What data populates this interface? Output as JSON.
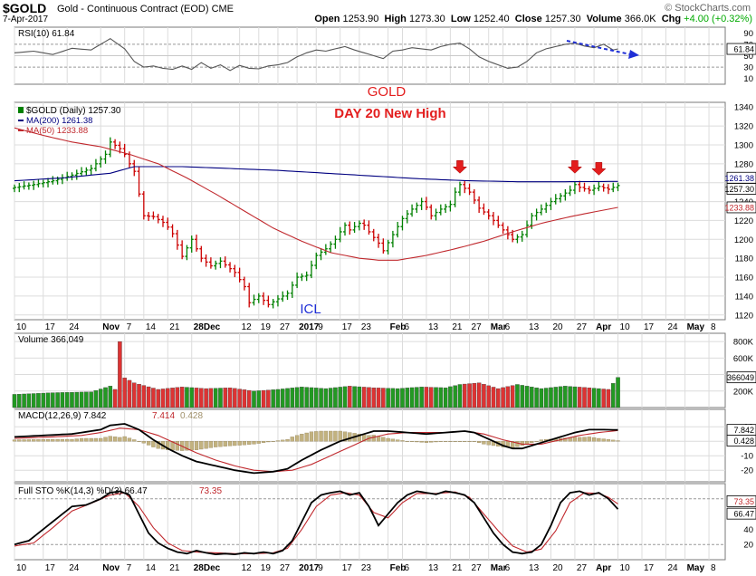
{
  "header": {
    "symbol": "$GOLD",
    "name": "Gold - Continuous Contract (EOD)  CME",
    "brand": "© StockCharts.com",
    "date": "7-Apr-2017",
    "open_label": "Open",
    "open": "1253.90",
    "high_label": "High",
    "high": "1273.30",
    "low_label": "Low",
    "low": "1252.40",
    "close_label": "Close",
    "close": "1257.30",
    "volume_label": "Volume",
    "volume": "366.0K",
    "chg_label": "Chg",
    "chg": "+4.00 (+0.32%)",
    "chg_color": "#00aa00"
  },
  "x_axis": {
    "labels": [
      {
        "i": 0,
        "t": "10"
      },
      {
        "i": 6,
        "t": "17"
      },
      {
        "i": 11,
        "t": "24"
      },
      {
        "i": 18,
        "t": "Nov"
      },
      {
        "i": 23,
        "t": "7"
      },
      {
        "i": 27,
        "t": "14"
      },
      {
        "i": 32,
        "t": "21"
      },
      {
        "i": 37,
        "t": "28Dec"
      },
      {
        "i": 47,
        "t": "12"
      },
      {
        "i": 51,
        "t": "19"
      },
      {
        "i": 55,
        "t": "27"
      },
      {
        "i": 59,
        "t": "2017"
      },
      {
        "i": 63,
        "t": "9"
      },
      {
        "i": 68,
        "t": "17"
      },
      {
        "i": 72,
        "t": "23"
      },
      {
        "i": 78,
        "t": "Feb"
      },
      {
        "i": 81,
        "t": "6"
      },
      {
        "i": 86,
        "t": "13"
      },
      {
        "i": 91,
        "t": "21"
      },
      {
        "i": 95,
        "t": "27"
      },
      {
        "i": 99,
        "t": "Mar"
      },
      {
        "i": 102,
        "t": "6"
      },
      {
        "i": 107,
        "t": "13"
      },
      {
        "i": 112,
        "t": "20"
      },
      {
        "i": 117,
        "t": "27"
      },
      {
        "i": 121,
        "t": "Apr"
      },
      {
        "i": 126,
        "t": "10"
      },
      {
        "i": 131,
        "t": "17"
      },
      {
        "i": 136,
        "t": "24"
      },
      {
        "i": 140,
        "t": "May"
      },
      {
        "i": 145,
        "t": "8"
      }
    ]
  },
  "rsi_panel": {
    "legend": "RSI(10) 61.84",
    "ticks": [
      "90",
      "70",
      "50",
      "30",
      "10"
    ],
    "tick_values": [
      90,
      70,
      50,
      30,
      10
    ],
    "last_label": "61.84"
  },
  "price_panel": {
    "legend_title": "$GOLD (Daily) 1257.30",
    "legend_ma200": "MA(200) 1261.38",
    "legend_ma50": "MA(50) 1233.88",
    "ma200_color": "#000080",
    "ma50_color": "#c0282d",
    "ticks": [
      "1340",
      "1320",
      "1300",
      "1280",
      "1260",
      "1240",
      "1220",
      "1200",
      "1180",
      "1160",
      "1140",
      "1120"
    ],
    "tick_values": [
      1340,
      1320,
      1300,
      1280,
      1260,
      1240,
      1220,
      1200,
      1180,
      1160,
      1140,
      1120
    ],
    "last_label": "1257.30",
    "ma200_label": "1261.38",
    "ma50_label": "1233.88",
    "up_color": "#008000",
    "down_color": "#cc0000"
  },
  "annotations": {
    "gold": "GOLD",
    "day20": "DAY 20  New High",
    "icl": "ICL",
    "red_color": "#e31d1d",
    "blue_color": "#1f2fd6"
  },
  "volume_panel": {
    "legend": "Volume 366,049",
    "ticks": [
      "800K",
      "600K",
      "400K",
      "200K"
    ],
    "tick_values": [
      800000,
      600000,
      400000,
      200000
    ],
    "last_label": "366049"
  },
  "macd_panel": {
    "legend_a": "MACD(12,26,9) 7.842",
    "legend_b": "7.414",
    "legend_c": "0.428",
    "ticks": [
      "10",
      "0",
      "-10",
      "-20"
    ],
    "tick_values": [
      10,
      0,
      -10,
      -20
    ],
    "macd_label": "7.842",
    "hist_label": "0.428"
  },
  "sto_panel": {
    "legend_a": "Full STO %K(14,3) %D(3) 66.47",
    "legend_b": "73.35",
    "ticks": [
      "80",
      "60",
      "40",
      "20"
    ],
    "tick_values": [
      80,
      60,
      40,
      20
    ],
    "k_label": "66.47",
    "d_label": "73.35"
  },
  "chart_data": {
    "type": "line",
    "title": "$GOLD (Daily) 1257.30",
    "ylim": [
      1115,
      1345
    ],
    "arrows_at": [
      93,
      117,
      122,
      128
    ],
    "close_anchors": [
      [
        0,
        1255
      ],
      [
        4,
        1258
      ],
      [
        8,
        1262
      ],
      [
        12,
        1268
      ],
      [
        16,
        1275
      ],
      [
        19,
        1290
      ],
      [
        20,
        1303
      ],
      [
        22,
        1296
      ],
      [
        23,
        1290
      ],
      [
        24,
        1280
      ],
      [
        25,
        1272
      ],
      [
        26,
        1248
      ],
      [
        27,
        1225
      ],
      [
        29,
        1224
      ],
      [
        31,
        1218
      ],
      [
        32,
        1213
      ],
      [
        33,
        1206
      ],
      [
        35,
        1182
      ],
      [
        37,
        1200
      ],
      [
        39,
        1180
      ],
      [
        41,
        1172
      ],
      [
        43,
        1177
      ],
      [
        46,
        1165
      ],
      [
        48,
        1150
      ],
      [
        49,
        1133
      ],
      [
        51,
        1140
      ],
      [
        53,
        1131
      ],
      [
        55,
        1137
      ],
      [
        57,
        1143
      ],
      [
        59,
        1160
      ],
      [
        61,
        1162
      ],
      [
        63,
        1183
      ],
      [
        65,
        1190
      ],
      [
        67,
        1200
      ],
      [
        68,
        1208
      ],
      [
        69,
        1215
      ],
      [
        70,
        1210
      ],
      [
        72,
        1217
      ],
      [
        73,
        1215
      ],
      [
        74,
        1208
      ],
      [
        76,
        1196
      ],
      [
        77,
        1188
      ],
      [
        79,
        1205
      ],
      [
        81,
        1222
      ],
      [
        83,
        1232
      ],
      [
        85,
        1240
      ],
      [
        86,
        1234
      ],
      [
        87,
        1225
      ],
      [
        89,
        1232
      ],
      [
        91,
        1237
      ],
      [
        92,
        1250
      ],
      [
        93,
        1258
      ],
      [
        95,
        1250
      ],
      [
        97,
        1233
      ],
      [
        99,
        1225
      ],
      [
        101,
        1215
      ],
      [
        103,
        1205
      ],
      [
        104,
        1200
      ],
      [
        106,
        1205
      ],
      [
        108,
        1225
      ],
      [
        110,
        1232
      ],
      [
        112,
        1240
      ],
      [
        114,
        1246
      ],
      [
        116,
        1252
      ],
      [
        117,
        1258
      ],
      [
        118,
        1255
      ],
      [
        120,
        1252
      ],
      [
        122,
        1256
      ],
      [
        124,
        1253
      ],
      [
        126,
        1257
      ]
    ],
    "rsi_anchors": [
      [
        0,
        55
      ],
      [
        4,
        58
      ],
      [
        8,
        52
      ],
      [
        12,
        63
      ],
      [
        16,
        60
      ],
      [
        18,
        70
      ],
      [
        20,
        80
      ],
      [
        21,
        74
      ],
      [
        23,
        62
      ],
      [
        25,
        40
      ],
      [
        27,
        30
      ],
      [
        29,
        32
      ],
      [
        31,
        28
      ],
      [
        33,
        26
      ],
      [
        35,
        32
      ],
      [
        37,
        26
      ],
      [
        39,
        38
      ],
      [
        41,
        28
      ],
      [
        43,
        34
      ],
      [
        45,
        24
      ],
      [
        47,
        33
      ],
      [
        49,
        28
      ],
      [
        51,
        27
      ],
      [
        53,
        32
      ],
      [
        55,
        34
      ],
      [
        57,
        38
      ],
      [
        59,
        48
      ],
      [
        61,
        55
      ],
      [
        63,
        60
      ],
      [
        65,
        58
      ],
      [
        67,
        62
      ],
      [
        69,
        66
      ],
      [
        71,
        60
      ],
      [
        73,
        55
      ],
      [
        75,
        50
      ],
      [
        77,
        45
      ],
      [
        79,
        58
      ],
      [
        81,
        60
      ],
      [
        83,
        64
      ],
      [
        85,
        62
      ],
      [
        87,
        60
      ],
      [
        89,
        66
      ],
      [
        91,
        70
      ],
      [
        93,
        72
      ],
      [
        95,
        62
      ],
      [
        97,
        48
      ],
      [
        99,
        40
      ],
      [
        101,
        34
      ],
      [
        103,
        28
      ],
      [
        105,
        30
      ],
      [
        107,
        40
      ],
      [
        109,
        55
      ],
      [
        111,
        62
      ],
      [
        113,
        66
      ],
      [
        115,
        70
      ],
      [
        117,
        72
      ],
      [
        119,
        67
      ],
      [
        121,
        64
      ],
      [
        123,
        70
      ],
      [
        125,
        60
      ],
      [
        126,
        61.84
      ]
    ],
    "ma200_anchors": [
      [
        0,
        1262
      ],
      [
        10,
        1265
      ],
      [
        20,
        1270
      ],
      [
        25,
        1277
      ],
      [
        35,
        1277
      ],
      [
        45,
        1275
      ],
      [
        55,
        1273
      ],
      [
        65,
        1270
      ],
      [
        75,
        1267
      ],
      [
        85,
        1264
      ],
      [
        95,
        1262
      ],
      [
        105,
        1261
      ],
      [
        115,
        1261
      ],
      [
        126,
        1261.38
      ]
    ],
    "ma50_anchors": [
      [
        0,
        1318
      ],
      [
        6,
        1310
      ],
      [
        12,
        1303
      ],
      [
        18,
        1298
      ],
      [
        24,
        1290
      ],
      [
        30,
        1280
      ],
      [
        36,
        1265
      ],
      [
        42,
        1248
      ],
      [
        48,
        1230
      ],
      [
        54,
        1212
      ],
      [
        60,
        1198
      ],
      [
        66,
        1186
      ],
      [
        72,
        1180
      ],
      [
        76,
        1178
      ],
      [
        80,
        1178
      ],
      [
        86,
        1183
      ],
      [
        92,
        1190
      ],
      [
        98,
        1198
      ],
      [
        104,
        1208
      ],
      [
        110,
        1217
      ],
      [
        116,
        1224
      ],
      [
        121,
        1229
      ],
      [
        126,
        1233.88
      ]
    ],
    "volume_anchors": [
      [
        0,
        160000
      ],
      [
        8,
        180000
      ],
      [
        16,
        190000
      ],
      [
        20,
        260000
      ],
      [
        21,
        220000
      ],
      [
        22,
        800000
      ],
      [
        23,
        360000
      ],
      [
        25,
        300000
      ],
      [
        30,
        220000
      ],
      [
        35,
        250000
      ],
      [
        40,
        230000
      ],
      [
        45,
        240000
      ],
      [
        50,
        200000
      ],
      [
        55,
        220000
      ],
      [
        60,
        250000
      ],
      [
        65,
        230000
      ],
      [
        70,
        260000
      ],
      [
        75,
        240000
      ],
      [
        80,
        230000
      ],
      [
        85,
        250000
      ],
      [
        90,
        240000
      ],
      [
        93,
        280000
      ],
      [
        97,
        300000
      ],
      [
        101,
        230000
      ],
      [
        105,
        280000
      ],
      [
        110,
        230000
      ],
      [
        115,
        260000
      ],
      [
        120,
        240000
      ],
      [
        124,
        220000
      ],
      [
        126,
        366049
      ]
    ],
    "macd_anchors": [
      [
        0,
        3
      ],
      [
        6,
        4
      ],
      [
        12,
        5
      ],
      [
        18,
        8
      ],
      [
        20,
        11
      ],
      [
        23,
        12
      ],
      [
        26,
        8
      ],
      [
        29,
        1
      ],
      [
        32,
        -5
      ],
      [
        35,
        -10
      ],
      [
        38,
        -14
      ],
      [
        42,
        -17
      ],
      [
        46,
        -20
      ],
      [
        50,
        -22
      ],
      [
        54,
        -21
      ],
      [
        57,
        -19
      ],
      [
        60,
        -13
      ],
      [
        64,
        -6
      ],
      [
        68,
        0
      ],
      [
        72,
        4
      ],
      [
        75,
        7
      ],
      [
        78,
        7
      ],
      [
        82,
        6
      ],
      [
        86,
        5
      ],
      [
        90,
        6
      ],
      [
        94,
        7
      ],
      [
        96,
        6
      ],
      [
        98,
        3
      ],
      [
        100,
        0
      ],
      [
        102,
        -3
      ],
      [
        104,
        -5
      ],
      [
        106,
        -5
      ],
      [
        108,
        -3
      ],
      [
        111,
        0
      ],
      [
        114,
        3
      ],
      [
        117,
        6
      ],
      [
        120,
        8
      ],
      [
        123,
        8
      ],
      [
        126,
        7.842
      ]
    ],
    "signal_anchors": [
      [
        0,
        2
      ],
      [
        8,
        3
      ],
      [
        14,
        4
      ],
      [
        18,
        6
      ],
      [
        22,
        9
      ],
      [
        26,
        8
      ],
      [
        30,
        4
      ],
      [
        34,
        -2
      ],
      [
        38,
        -8
      ],
      [
        42,
        -13
      ],
      [
        46,
        -17
      ],
      [
        50,
        -20
      ],
      [
        54,
        -21
      ],
      [
        58,
        -20
      ],
      [
        62,
        -16
      ],
      [
        66,
        -10
      ],
      [
        70,
        -4
      ],
      [
        74,
        2
      ],
      [
        78,
        5
      ],
      [
        82,
        6
      ],
      [
        86,
        6
      ],
      [
        90,
        6
      ],
      [
        94,
        7
      ],
      [
        98,
        5
      ],
      [
        102,
        1
      ],
      [
        106,
        -2
      ],
      [
        110,
        -2
      ],
      [
        114,
        1
      ],
      [
        118,
        4
      ],
      [
        122,
        6
      ],
      [
        126,
        7.414
      ]
    ],
    "stok_anchors": [
      [
        0,
        20
      ],
      [
        3,
        25
      ],
      [
        6,
        40
      ],
      [
        9,
        55
      ],
      [
        12,
        70
      ],
      [
        15,
        72
      ],
      [
        18,
        80
      ],
      [
        20,
        88
      ],
      [
        22,
        90
      ],
      [
        24,
        85
      ],
      [
        26,
        60
      ],
      [
        28,
        35
      ],
      [
        30,
        22
      ],
      [
        32,
        15
      ],
      [
        34,
        10
      ],
      [
        36,
        8
      ],
      [
        38,
        12
      ],
      [
        40,
        9
      ],
      [
        42,
        7
      ],
      [
        44,
        8
      ],
      [
        46,
        7
      ],
      [
        48,
        9
      ],
      [
        50,
        8
      ],
      [
        52,
        10
      ],
      [
        54,
        8
      ],
      [
        56,
        12
      ],
      [
        58,
        25
      ],
      [
        60,
        50
      ],
      [
        62,
        75
      ],
      [
        64,
        85
      ],
      [
        66,
        88
      ],
      [
        68,
        90
      ],
      [
        70,
        85
      ],
      [
        72,
        88
      ],
      [
        74,
        70
      ],
      [
        76,
        45
      ],
      [
        78,
        60
      ],
      [
        80,
        75
      ],
      [
        82,
        85
      ],
      [
        84,
        90
      ],
      [
        86,
        88
      ],
      [
        88,
        86
      ],
      [
        90,
        90
      ],
      [
        92,
        88
      ],
      [
        94,
        85
      ],
      [
        96,
        75
      ],
      [
        98,
        55
      ],
      [
        100,
        35
      ],
      [
        102,
        20
      ],
      [
        104,
        10
      ],
      [
        106,
        8
      ],
      [
        108,
        10
      ],
      [
        110,
        20
      ],
      [
        112,
        45
      ],
      [
        114,
        75
      ],
      [
        116,
        88
      ],
      [
        118,
        90
      ],
      [
        120,
        85
      ],
      [
        122,
        88
      ],
      [
        124,
        80
      ],
      [
        126,
        66.47
      ]
    ],
    "stod_anchors": [
      [
        0,
        18
      ],
      [
        4,
        22
      ],
      [
        8,
        42
      ],
      [
        12,
        64
      ],
      [
        16,
        74
      ],
      [
        20,
        85
      ],
      [
        23,
        88
      ],
      [
        26,
        70
      ],
      [
        29,
        42
      ],
      [
        32,
        22
      ],
      [
        35,
        12
      ],
      [
        38,
        10
      ],
      [
        42,
        9
      ],
      [
        46,
        8
      ],
      [
        50,
        8
      ],
      [
        54,
        9
      ],
      [
        57,
        15
      ],
      [
        60,
        40
      ],
      [
        63,
        70
      ],
      [
        66,
        85
      ],
      [
        69,
        88
      ],
      [
        72,
        85
      ],
      [
        75,
        62
      ],
      [
        78,
        55
      ],
      [
        81,
        75
      ],
      [
        84,
        87
      ],
      [
        88,
        87
      ],
      [
        92,
        89
      ],
      [
        95,
        82
      ],
      [
        98,
        60
      ],
      [
        101,
        38
      ],
      [
        104,
        18
      ],
      [
        107,
        10
      ],
      [
        110,
        14
      ],
      [
        113,
        38
      ],
      [
        116,
        75
      ],
      [
        119,
        88
      ],
      [
        122,
        87
      ],
      [
        124,
        82
      ],
      [
        126,
        73.35
      ]
    ]
  }
}
